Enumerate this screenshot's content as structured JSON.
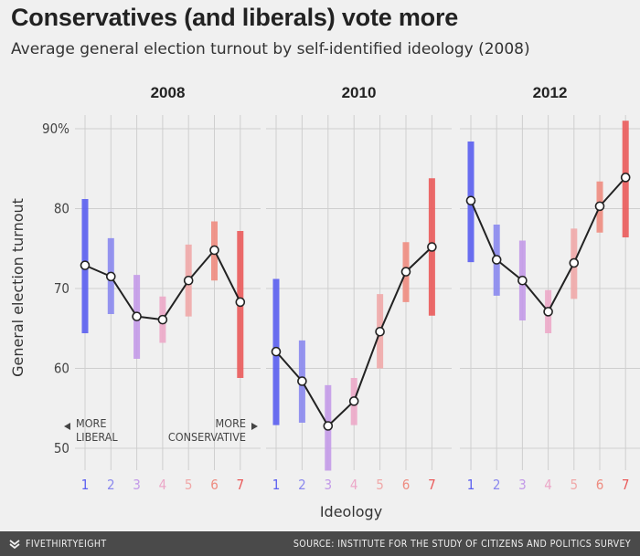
{
  "header": {
    "title": "Conservatives (and liberals) vote more",
    "subtitle": "Average general election turnout by self-identified ideology (2008)"
  },
  "footer": {
    "brand": "FIVETHIRTYEIGHT",
    "source": "SOURCE: INSTITUTE FOR THE STUDY OF CITIZENS AND POLITICS SURVEY"
  },
  "annotations": {
    "liberal_line1": "MORE",
    "liberal_line2": "LIBERAL",
    "conservative_line1": "MORE",
    "conservative_line2": "CONSERVATIVE"
  },
  "colors": {
    "ideology": [
      "#5a5ef0",
      "#8a88ee",
      "#c39ae8",
      "#eca8c8",
      "#f0a8a8",
      "#ee8c80",
      "#ea5a5a"
    ],
    "line": "#222222",
    "grid": "#cfcfcf",
    "background": "#f0f0f0"
  },
  "chart_data": [
    {
      "type": "line",
      "title": "2008",
      "xlabel": "Ideology",
      "ylabel": "General election turnout",
      "ylim": [
        46,
        91
      ],
      "y_ticks": [
        "90%",
        "80",
        "70",
        "60",
        "50"
      ],
      "categories": [
        "1",
        "2",
        "3",
        "4",
        "5",
        "6",
        "7"
      ],
      "values": [
        72.9,
        71.5,
        66.5,
        66.1,
        71.0,
        74.8,
        68.3
      ],
      "ranges": [
        [
          64.4,
          81.2
        ],
        [
          66.8,
          76.3
        ],
        [
          61.2,
          71.7
        ],
        [
          63.2,
          69.0
        ],
        [
          66.5,
          75.5
        ],
        [
          71.0,
          78.4
        ],
        [
          58.8,
          77.2
        ]
      ],
      "grid": true
    },
    {
      "type": "line",
      "title": "2010",
      "xlabel": "Ideology",
      "ylabel": "General election turnout",
      "ylim": [
        46,
        91
      ],
      "categories": [
        "1",
        "2",
        "3",
        "4",
        "5",
        "6",
        "7"
      ],
      "values": [
        62.1,
        58.4,
        52.8,
        55.9,
        64.6,
        72.1,
        75.2
      ],
      "ranges": [
        [
          52.9,
          71.2
        ],
        [
          53.2,
          63.5
        ],
        [
          47.2,
          57.9
        ],
        [
          52.9,
          58.8
        ],
        [
          60.0,
          69.3
        ],
        [
          68.3,
          75.8
        ],
        [
          66.6,
          83.8
        ]
      ],
      "grid": true
    },
    {
      "type": "line",
      "title": "2012",
      "xlabel": "Ideology",
      "ylabel": "General election turnout",
      "ylim": [
        46,
        91
      ],
      "categories": [
        "1",
        "2",
        "3",
        "4",
        "5",
        "6",
        "7"
      ],
      "values": [
        81.0,
        73.6,
        71.0,
        67.1,
        73.2,
        80.3,
        83.9
      ],
      "ranges": [
        [
          73.3,
          88.4
        ],
        [
          69.1,
          78.0
        ],
        [
          66.0,
          76.0
        ],
        [
          64.4,
          69.8
        ],
        [
          68.7,
          77.5
        ],
        [
          77.0,
          83.4
        ],
        [
          76.4,
          91.0
        ]
      ],
      "grid": true
    }
  ]
}
